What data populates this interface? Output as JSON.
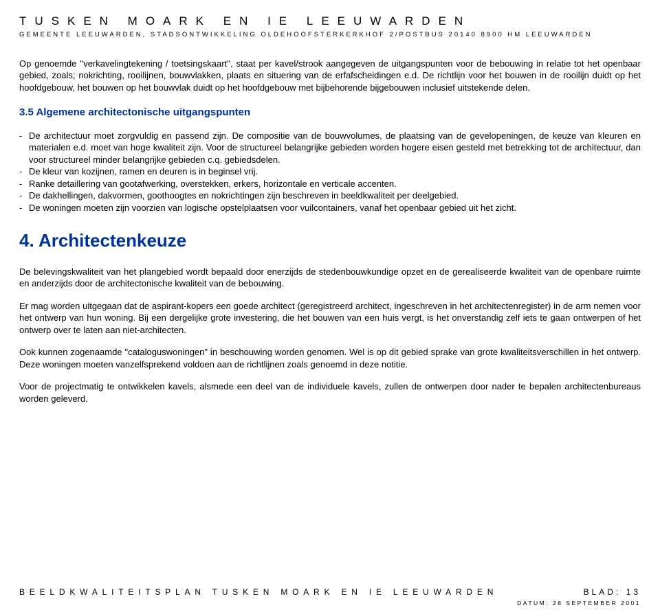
{
  "header": {
    "title": "TUSKEN MOARK EN IE LEEUWARDEN",
    "subtitle": "GEMEENTE LEEUWARDEN, STADSONTWIKKELING OLDEHOOFSTERKERKHOF 2/POSTBUS 20140 8900 HM LEEUWARDEN"
  },
  "intro": "Op genoemde ''verkavelingtekening / toetsingskaart'', staat per kavel/strook aangegeven de uitgangspunten voor de bebouwing in relatie tot het openbaar gebied, zoals; nokrichting, rooilijnen, bouwvlakken, plaats en situering van de erfafscheidingen e.d. De richtlijn voor het bouwen in de rooilijn duidt op het hoofdgebouw, het bouwen op het bouwvlak duidt op het hoofdgebouw met bijbehorende bijgebouwen inclusief uitstekende delen.",
  "section35": {
    "heading": "3.5   Algemene architectonische uitgangspunten",
    "items": [
      "De architectuur moet zorgvuldig en passend zijn. De compositie van de bouwvolumes, de plaatsing van de gevelopeningen, de keuze van kleuren en materialen e.d. moet van hoge kwaliteit zijn.\nVoor de structureel belangrijke gebieden worden hogere eisen gesteld met betrekking tot de architectuur, dan voor structureel minder belangrijke gebieden c.q. gebiedsdelen.",
      "De kleur van kozijnen, ramen en deuren is in beginsel vrij.",
      "Ranke detaillering van gootafwerking, overstekken, erkers, horizontale en verticale accenten.",
      "De dakhellingen, dakvormen, goothoogtes en nokrichtingen zijn beschreven in beeldkwaliteit per deelgebied.",
      "De woningen moeten zijn voorzien van logische opstelplaatsen voor vuilcontainers, vanaf het openbaar gebied uit het zicht."
    ]
  },
  "chapter4": {
    "heading": "4.  Architectenkeuze",
    "paras": [
      "De belevingskwaliteit van het plangebied wordt bepaald door enerzijds de stedenbouwkundige opzet en de gerealiseerde kwaliteit van de openbare ruimte en anderzijds door de architectonische kwaliteit van de bebouwing.",
      "Er mag worden uitgegaan dat de aspirant-kopers een goede architect (geregistreerd architect, ingeschreven in het architectenregister) in de arm nemen voor het ontwerp van hun woning. Bij een dergelijke grote investering, die het bouwen van een huis vergt, is het onverstandig zelf iets te gaan ontwerpen of het ontwerp over te laten aan niet-architecten.",
      "Ook kunnen zogenaamde \"cataloguswoningen\" in beschouwing worden genomen. Wel is op dit gebied sprake van grote kwaliteitsverschillen in het ontwerp. Deze woningen moeten vanzelfsprekend voldoen aan de richtlijnen zoals genoemd in deze notitie.",
      "Voor de projectmatig te ontwikkelen kavels, alsmede een deel van de individuele kavels, zullen de ontwerpen door nader te bepalen architectenbureaus worden geleverd."
    ]
  },
  "footer": {
    "left": "BEELDKWALITEITSPLAN TUSKEN MOARK EN IE LEEUWARDEN",
    "right": "BLAD: 13",
    "date": "DATUM: 28 SEPTEMBER 2001"
  },
  "colors": {
    "heading": "#003399",
    "text": "#000000",
    "background": "#ffffff"
  }
}
